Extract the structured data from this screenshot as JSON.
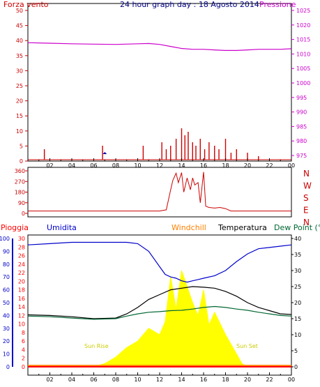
{
  "header": {
    "left_title": "Forza vento",
    "center_title": "24 hour graph day : 18 Agosto 2014",
    "right_title": "Pressione"
  },
  "x_axis": {
    "ticks": [
      "02",
      "04",
      "06",
      "08",
      "10",
      "12",
      "14",
      "16",
      "18",
      "20",
      "22",
      "00"
    ],
    "range_hours": [
      0,
      24
    ]
  },
  "colors": {
    "frame": "#000000",
    "wind": "#cc0000",
    "pressure": "#cc00cc",
    "gust_marker": "#0000aa",
    "direction": "#cc0000",
    "rain": "#ff0000",
    "humidity": "#0000cc",
    "windchill": "#ff8000",
    "temperature": "#000000",
    "dewpoint": "#006633",
    "solar": "#ffff00",
    "sun_text": "#cccc00"
  },
  "charts": {
    "wind_pressure": {
      "left_ticks": [
        "50",
        "45",
        "40",
        "35",
        "30",
        "25",
        "20",
        "15",
        "10",
        "5",
        "0"
      ],
      "right_ticks": [
        "1025",
        "1020",
        "1015",
        "1010",
        "1005",
        "1000",
        "995",
        "990",
        "985",
        "980",
        "975"
      ]
    },
    "direction": {
      "left_ticks": [
        "360",
        "270",
        "180",
        "90",
        "0"
      ],
      "compass": [
        "N",
        "W",
        "S",
        "E",
        "N"
      ]
    },
    "weather": {
      "legend": {
        "rain": "Pioggia",
        "humidity": "Umidita",
        "windchill": "Windchill",
        "temperature": "Temperatura",
        "dewpoint": "Dew Point (°C"
      },
      "hum_ticks": [
        "100",
        "90",
        "80",
        "70",
        "60",
        "50",
        "40",
        "30",
        "20",
        "10",
        "0"
      ],
      "rain_ticks": [
        "30",
        "28",
        "26",
        "24",
        "22",
        "20",
        "18",
        "16",
        "14",
        "12",
        "10",
        "8",
        "6",
        "4",
        "2",
        "0"
      ],
      "temp_ticks": [
        "40",
        "35",
        "30",
        "25",
        "20",
        "15",
        "10",
        "5",
        "0"
      ],
      "sunrise": "Sun Rise",
      "sunset": "Sun Set"
    }
  },
  "chart_data": [
    {
      "type": "line",
      "title": "24 hour graph day : 18 Agosto 2014",
      "series": [
        {
          "name": "Forza vento",
          "axis": "left",
          "x": [
            0,
            1,
            1.5,
            3,
            5,
            6.8,
            7.1,
            10.5,
            12.2,
            12.6,
            13,
            13.5,
            14,
            14.3,
            14.6,
            15,
            15.3,
            15.7,
            16.1,
            16.5,
            17,
            17.4,
            18,
            18.5,
            19,
            20,
            21,
            22.5,
            24
          ],
          "values": [
            0,
            0,
            3,
            0,
            0,
            4,
            0,
            4,
            5,
            3,
            4,
            6,
            9,
            7,
            8,
            5,
            4,
            6,
            3,
            5,
            4,
            3,
            6,
            2,
            3,
            2,
            1,
            0,
            0
          ]
        },
        {
          "name": "Pressione",
          "axis": "right",
          "x": [
            0,
            2,
            4,
            6,
            8,
            10,
            11,
            12,
            13,
            14,
            15,
            16,
            17,
            18,
            19,
            20,
            21,
            22,
            23,
            24
          ],
          "values": [
            1013.9,
            1013.7,
            1013.5,
            1013.4,
            1013.3,
            1013.5,
            1013.6,
            1013.3,
            1012.6,
            1011.9,
            1011.6,
            1011.6,
            1011.4,
            1011.2,
            1011.2,
            1011.4,
            1011.6,
            1011.6,
            1011.6,
            1011.8
          ]
        }
      ],
      "ylim_left": [
        0,
        50
      ],
      "ylim_right": [
        975,
        1025
      ]
    },
    {
      "type": "line",
      "series": [
        {
          "name": "direction",
          "x": [
            0,
            2,
            4,
            6,
            8,
            10,
            11,
            12,
            12.6,
            13,
            13.2,
            13.5,
            13.7,
            14,
            14.2,
            14.5,
            14.8,
            15.0,
            15.2,
            15.5,
            15.7,
            16,
            16.2,
            16.5,
            17,
            17.5,
            18,
            18.5,
            19,
            21,
            23,
            24
          ],
          "values": [
            20,
            20,
            20,
            20,
            20,
            20,
            20,
            20,
            30,
            200,
            280,
            340,
            260,
            345,
            180,
            300,
            200,
            300,
            240,
            260,
            90,
            350,
            60,
            50,
            45,
            50,
            40,
            20,
            20,
            20,
            20,
            20
          ]
        }
      ],
      "ylim": [
        0,
        360
      ]
    },
    {
      "type": "line",
      "series": [
        {
          "name": "Umidita",
          "axis": "hum",
          "x": [
            0,
            2,
            4,
            6,
            8,
            9,
            10,
            11,
            12,
            12.5,
            13,
            13.5,
            14,
            14.5,
            15,
            15.5,
            16,
            17,
            18,
            19,
            20,
            21,
            22,
            23,
            24
          ],
          "values": [
            95,
            96,
            97,
            97,
            97,
            97,
            96,
            90,
            78,
            72,
            70,
            69,
            67,
            66,
            67,
            68,
            69,
            71,
            75,
            82,
            88,
            92,
            93,
            94,
            95
          ]
        },
        {
          "name": "Temperatura",
          "axis": "temp",
          "x": [
            0,
            2,
            4,
            6,
            8,
            9,
            10,
            11,
            12,
            13,
            14,
            15,
            16,
            17,
            18,
            19,
            20,
            21,
            22,
            23,
            24
          ],
          "values": [
            16.2,
            16.0,
            15.6,
            15.0,
            15.2,
            16.5,
            18.5,
            21.0,
            22.5,
            24.0,
            24.5,
            25.0,
            24.8,
            24.5,
            23.5,
            22.0,
            20.0,
            18.5,
            17.5,
            16.5,
            16.3
          ]
        },
        {
          "name": "Dew Point (°C",
          "axis": "temp",
          "x": [
            0,
            2,
            4,
            6,
            8,
            9,
            10,
            11,
            12,
            13,
            14,
            15,
            16,
            17,
            18,
            19,
            20,
            21,
            22,
            23,
            24
          ],
          "values": [
            15.8,
            15.6,
            15.2,
            14.8,
            15.0,
            15.8,
            16.5,
            17.0,
            17.2,
            17.5,
            17.6,
            18.0,
            18.5,
            18.8,
            18.5,
            18.0,
            17.6,
            17.0,
            16.5,
            16.0,
            15.8
          ]
        },
        {
          "name": "Windchill",
          "axis": "temp",
          "x": [
            0,
            24
          ],
          "values": [
            0.4,
            0.4
          ]
        },
        {
          "name": "Pioggia",
          "axis": "rain",
          "x": [
            0,
            24
          ],
          "values": [
            0,
            0
          ]
        },
        {
          "name": "solar",
          "axis": "temp",
          "x": [
            6,
            7,
            8,
            9,
            10,
            11,
            12,
            12.5,
            13,
            13.5,
            14,
            14.5,
            15,
            15.5,
            16,
            16.5,
            17,
            18,
            19,
            19.5,
            20
          ],
          "values": [
            0,
            1,
            3,
            6,
            8,
            12,
            10,
            14,
            28,
            18,
            30,
            25,
            20,
            16,
            24,
            13,
            17,
            10,
            4,
            1,
            0
          ]
        }
      ],
      "ylim_hum": [
        0,
        100
      ],
      "ylim_rain": [
        0,
        30
      ],
      "ylim_temp": [
        0,
        40
      ]
    }
  ]
}
